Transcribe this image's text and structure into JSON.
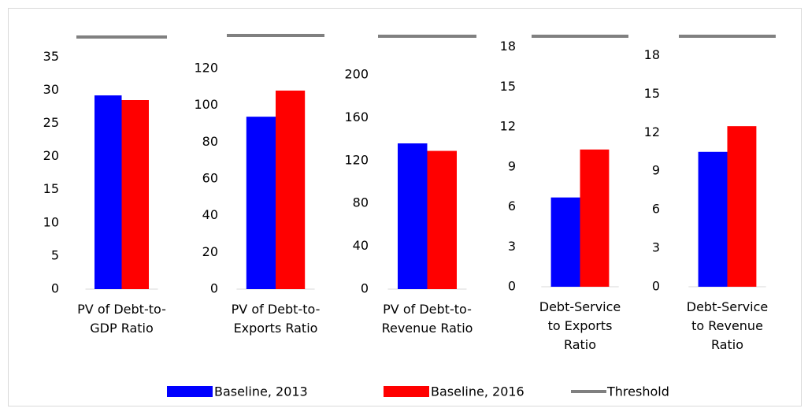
{
  "chart_data": [
    {
      "type": "bar",
      "categories": [
        "PV of Debt-to-GDP Ratio"
      ],
      "series": [
        {
          "name": "Baseline, 2013",
          "color": "#0000ff",
          "values": [
            29.2
          ]
        },
        {
          "name": "Baseline, 2016",
          "color": "#ff0000",
          "values": [
            28.5
          ]
        },
        {
          "name": "Threshold",
          "color": "#808080",
          "type": "line",
          "values": [
            38
          ]
        }
      ],
      "ylim": [
        0,
        38
      ],
      "yticks": [
        0,
        5,
        10,
        15,
        20,
        25,
        30,
        35
      ]
    },
    {
      "type": "bar",
      "categories": [
        "PV of Debt-to-Exports Ratio"
      ],
      "series": [
        {
          "name": "Baseline, 2013",
          "color": "#0000ff",
          "values": [
            93.8
          ]
        },
        {
          "name": "Baseline, 2016",
          "color": "#ff0000",
          "values": [
            108
          ]
        },
        {
          "name": "Threshold",
          "color": "#808080",
          "type": "line",
          "values": [
            138
          ]
        }
      ],
      "ylim": [
        0,
        138
      ],
      "yticks": [
        0,
        20,
        40,
        60,
        80,
        100,
        120
      ]
    },
    {
      "type": "bar",
      "categories": [
        "PV of Debt-to-Revenue Ratio"
      ],
      "series": [
        {
          "name": "Baseline, 2013",
          "color": "#0000ff",
          "values": [
            136
          ]
        },
        {
          "name": "Baseline, 2016",
          "color": "#ff0000",
          "values": [
            129
          ]
        },
        {
          "name": "Threshold",
          "color": "#808080",
          "type": "line",
          "values": [
            236
          ]
        }
      ],
      "ylim": [
        0,
        236
      ],
      "yticks": [
        0,
        40,
        80,
        120,
        160,
        200
      ]
    },
    {
      "type": "bar",
      "categories": [
        "Debt-Service to Exports Ratio"
      ],
      "series": [
        {
          "name": "Baseline, 2013",
          "color": "#0000ff",
          "values": [
            6.7
          ]
        },
        {
          "name": "Baseline, 2016",
          "color": "#ff0000",
          "values": [
            10.3
          ]
        },
        {
          "name": "Threshold",
          "color": "#808080",
          "type": "line",
          "values": [
            18.8
          ]
        }
      ],
      "ylim": [
        0,
        18.8
      ],
      "yticks": [
        0,
        3,
        6,
        9,
        12,
        15,
        18
      ]
    },
    {
      "type": "bar",
      "categories": [
        "Debt-Service to Revenue Ratio"
      ],
      "series": [
        {
          "name": "Baseline, 2013",
          "color": "#0000ff",
          "values": [
            10.5
          ]
        },
        {
          "name": "Baseline, 2016",
          "color": "#ff0000",
          "values": [
            12.5
          ]
        },
        {
          "name": "Threshold",
          "color": "#808080",
          "type": "line",
          "values": [
            19.5
          ]
        }
      ],
      "ylim": [
        0,
        19.5
      ],
      "yticks": [
        0,
        3,
        6,
        9,
        12,
        15,
        18
      ]
    }
  ]
}
